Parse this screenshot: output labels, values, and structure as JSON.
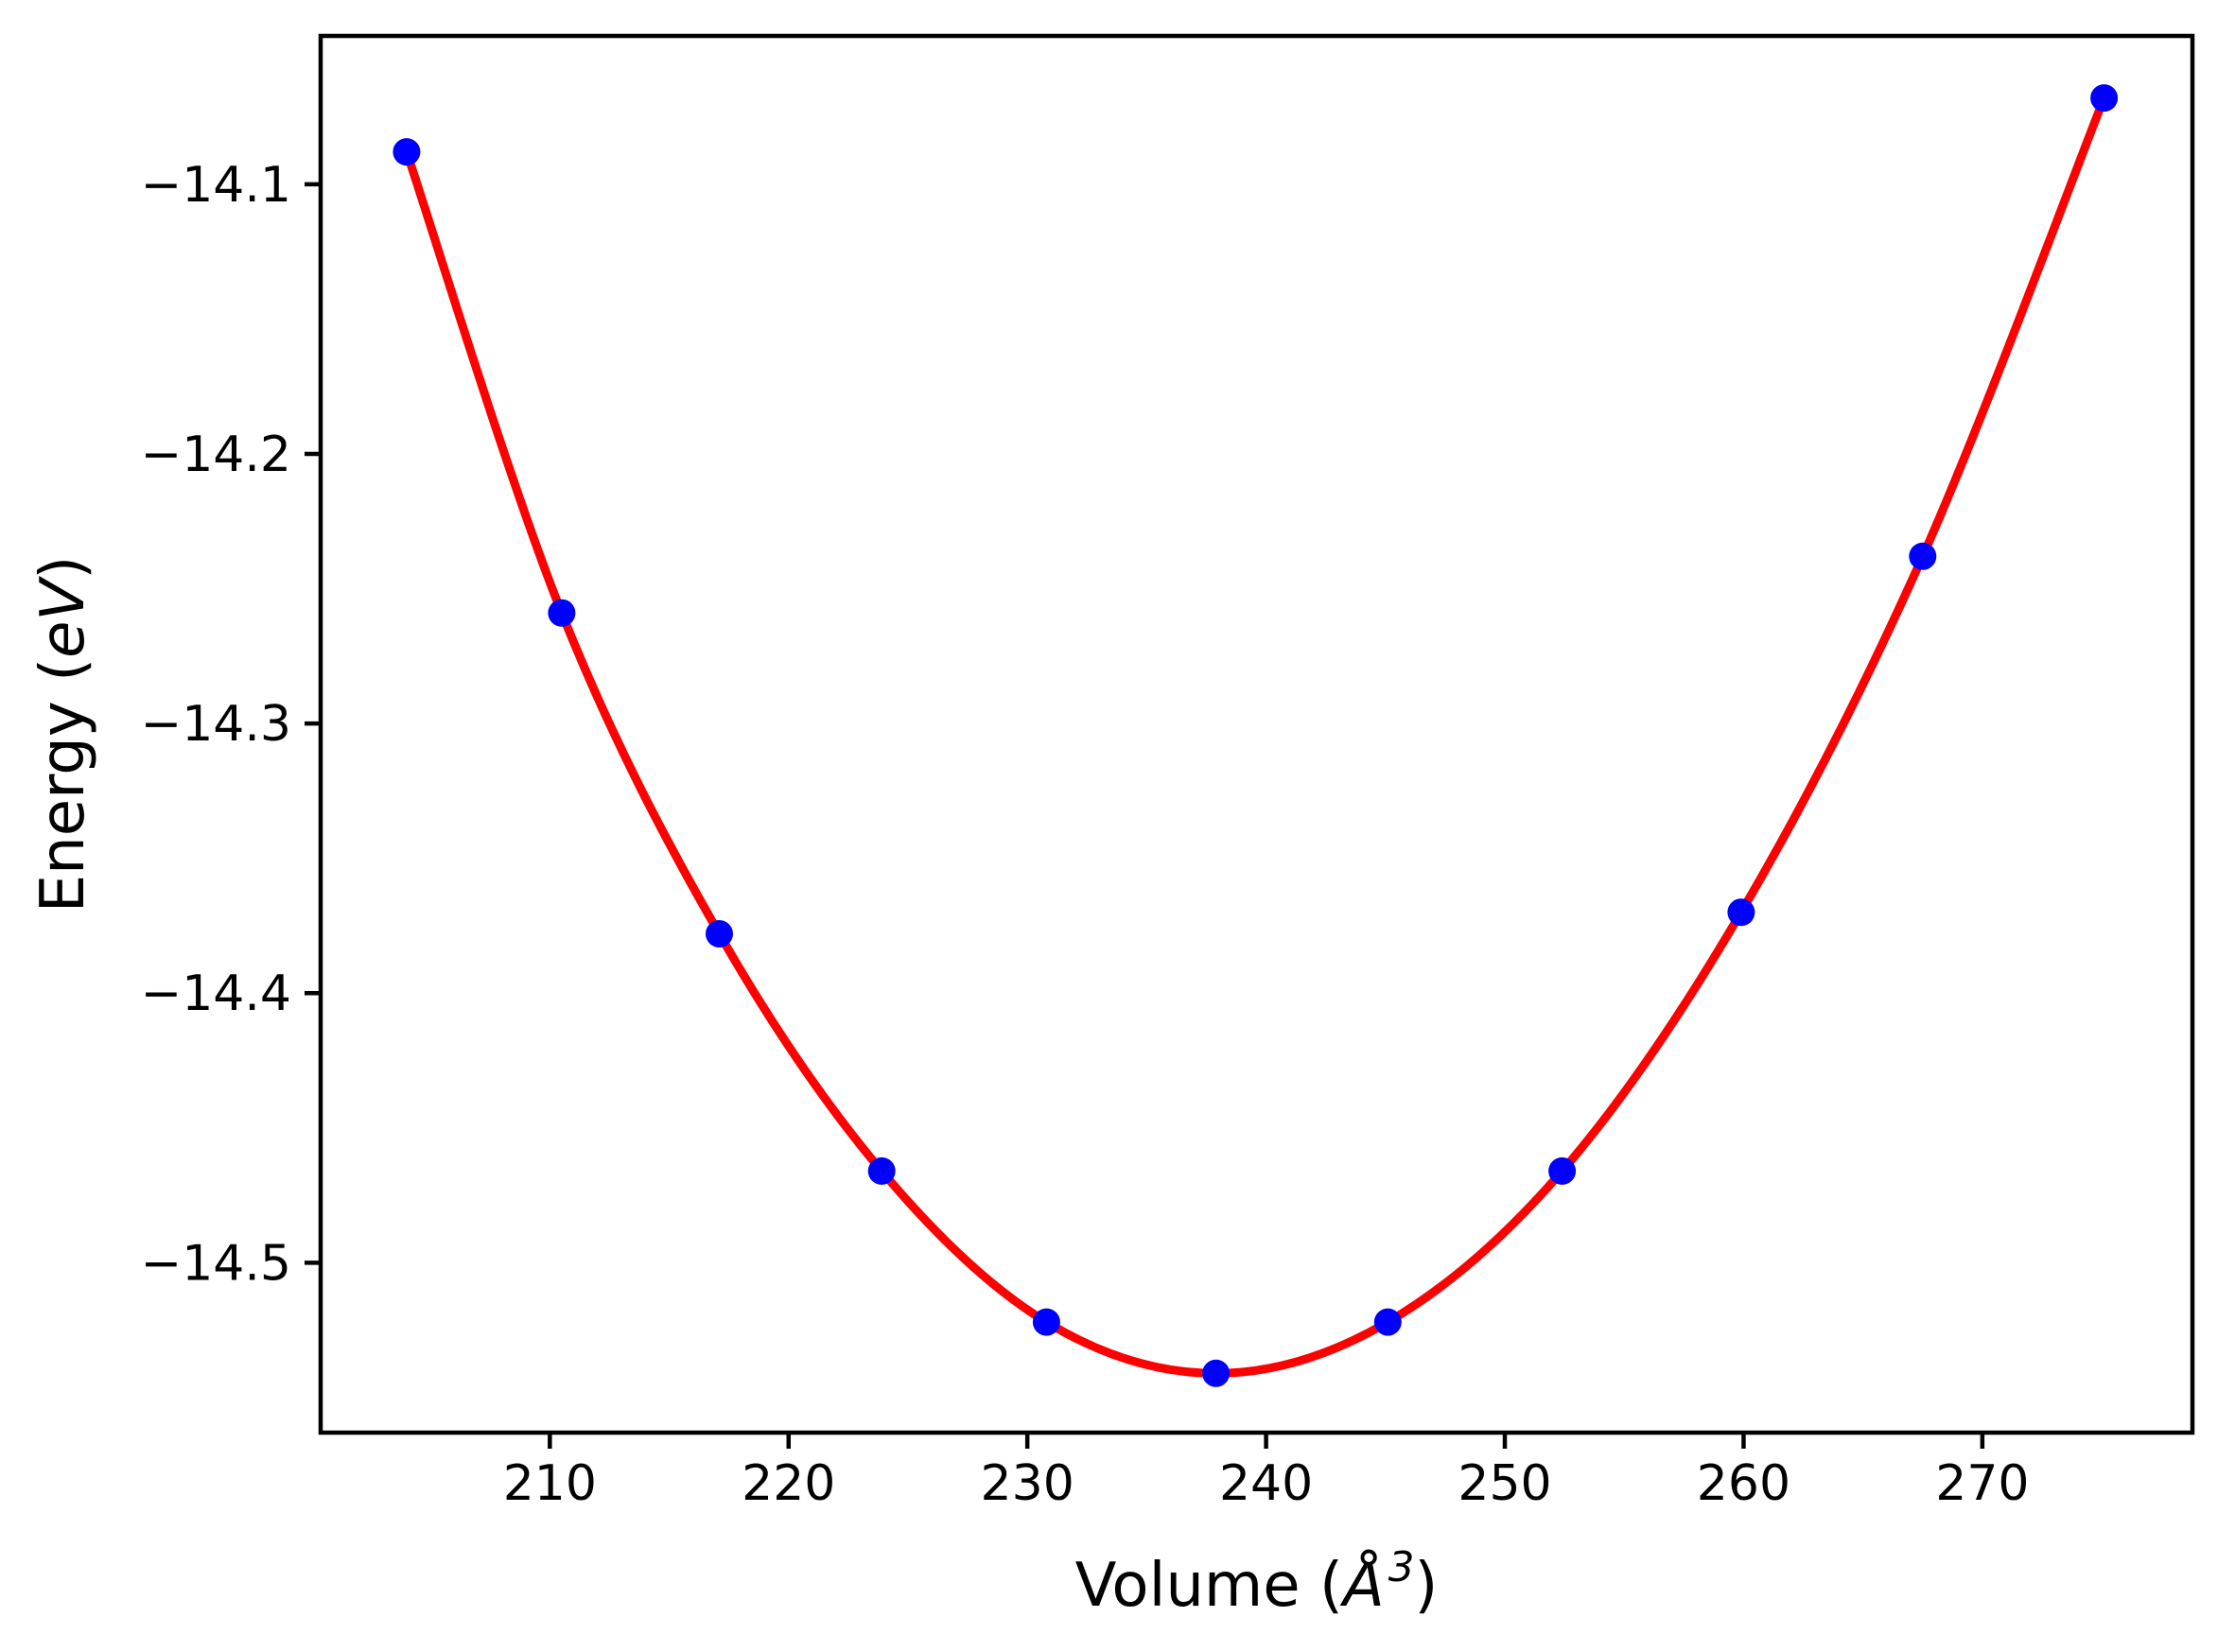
{
  "figure": {
    "background": "#ffffff",
    "frame_color": "#000000"
  },
  "chart_data": {
    "type": "scatter",
    "title": "",
    "xlabel": "Volume (Å³)",
    "xlabel_parts": {
      "prefix": "Volume (",
      "symbol": "Å",
      "exponent": "3",
      "suffix": ")"
    },
    "ylabel": "Energy (eV)",
    "ylabel_parts": {
      "prefix": "Energy (",
      "symbol": "eV",
      "suffix": ")"
    },
    "series": [
      {
        "name": "eos-fit-curve",
        "type": "line",
        "color": "#ff0000",
        "style": "smooth",
        "x": [
          204.0,
          210.5,
          217.1,
          223.9,
          230.8,
          237.9,
          245.1,
          252.4,
          259.9,
          267.5,
          275.1
        ],
        "y": [
          -14.088,
          -14.259,
          -14.378,
          -14.466,
          -14.522,
          -14.541,
          -14.522,
          -14.466,
          -14.37,
          -14.238,
          -14.068
        ]
      },
      {
        "name": "calculated-points",
        "type": "scatter",
        "color": "#0000ff",
        "x": [
          204.0,
          210.5,
          217.1,
          223.9,
          230.8,
          237.9,
          245.1,
          252.4,
          259.9,
          267.5,
          275.1
        ],
        "y": [
          -14.088,
          -14.259,
          -14.378,
          -14.466,
          -14.522,
          -14.541,
          -14.522,
          -14.466,
          -14.37,
          -14.238,
          -14.068
        ]
      }
    ],
    "xticks": [
      210,
      220,
      230,
      240,
      250,
      260,
      270
    ],
    "xtick_labels": [
      "210",
      "220",
      "230",
      "240",
      "250",
      "260",
      "270"
    ],
    "yticks": [
      -14.1,
      -14.2,
      -14.3,
      -14.4,
      -14.5
    ],
    "ytick_labels": [
      "−14.1",
      "−14.2",
      "−14.3",
      "−14.4",
      "−14.5"
    ],
    "xlim": [
      200.4,
      278.8
    ],
    "ylim": [
      -14.563,
      -14.045
    ],
    "grid": false,
    "legend": "none",
    "line_color": "#ff0000",
    "marker_color": "#0000ff"
  }
}
